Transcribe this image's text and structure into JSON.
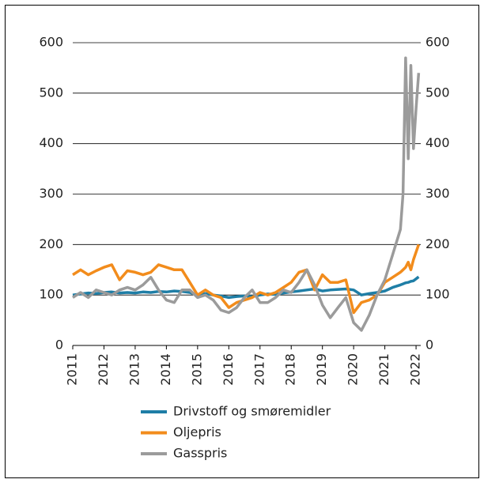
{
  "chart_data": {
    "type": "line",
    "x": [
      2011,
      2011.25,
      2011.5,
      2011.75,
      2012,
      2012.25,
      2012.5,
      2012.75,
      2013,
      2013.25,
      2013.5,
      2013.75,
      2014,
      2014.25,
      2014.5,
      2014.75,
      2015,
      2015.25,
      2015.5,
      2015.75,
      2016,
      2016.25,
      2016.5,
      2016.75,
      2017,
      2017.25,
      2017.5,
      2017.75,
      2018,
      2018.25,
      2018.5,
      2018.75,
      2019,
      2019.25,
      2019.5,
      2019.75,
      2020,
      2020.25,
      2020.5,
      2020.75,
      2021,
      2021.25,
      2021.5,
      2021.583,
      2021.667,
      2021.75,
      2021.833,
      2021.917,
      2022,
      2022.083
    ],
    "series": [
      {
        "name": "Drivstoff og smøremidler",
        "color": "#1f7ea6",
        "values": [
          100,
          102,
          104,
          103,
          105,
          106,
          104,
          105,
          104,
          106,
          105,
          107,
          106,
          108,
          107,
          105,
          100,
          103,
          100,
          98,
          95,
          97,
          98,
          97,
          100,
          102,
          101,
          104,
          106,
          108,
          110,
          112,
          108,
          110,
          111,
          112,
          110,
          100,
          103,
          105,
          108,
          115,
          120,
          122,
          124,
          125,
          127,
          128,
          132,
          136
        ]
      },
      {
        "name": "Oljepris",
        "color": "#f28c1c",
        "values": [
          140,
          150,
          140,
          148,
          155,
          160,
          130,
          148,
          145,
          140,
          145,
          160,
          155,
          150,
          150,
          125,
          100,
          110,
          100,
          95,
          75,
          85,
          90,
          95,
          105,
          100,
          105,
          115,
          125,
          145,
          150,
          110,
          140,
          125,
          125,
          130,
          65,
          85,
          90,
          100,
          125,
          135,
          145,
          150,
          155,
          165,
          150,
          170,
          185,
          200
        ]
      },
      {
        "name": "Gasspris",
        "color": "#9b9b9b",
        "values": [
          95,
          105,
          95,
          110,
          105,
          100,
          110,
          115,
          110,
          120,
          135,
          110,
          90,
          85,
          110,
          110,
          95,
          100,
          90,
          70,
          65,
          75,
          95,
          110,
          85,
          85,
          95,
          110,
          105,
          125,
          150,
          120,
          80,
          55,
          75,
          95,
          45,
          30,
          60,
          100,
          130,
          180,
          230,
          300,
          570,
          370,
          555,
          390,
          470,
          540
        ]
      }
    ],
    "xlim": [
      2011,
      2022.15
    ],
    "xticks": [
      2011,
      2012,
      2013,
      2014,
      2015,
      2016,
      2017,
      2018,
      2019,
      2020,
      2021,
      2022
    ],
    "ylim": [
      0,
      600
    ],
    "yticks": [
      0,
      100,
      200,
      300,
      400,
      500,
      600
    ],
    "y2lim": [
      0,
      600
    ],
    "y2ticks": [
      0,
      100,
      200,
      300,
      400,
      500,
      600
    ],
    "grid": true
  }
}
